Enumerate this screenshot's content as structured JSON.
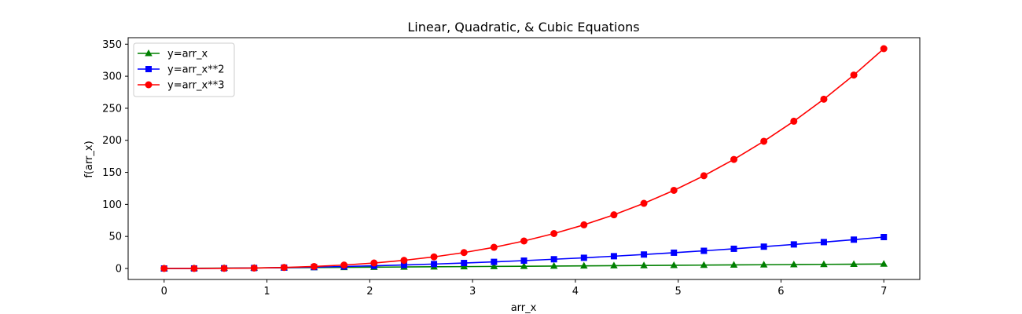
{
  "chart_data": {
    "type": "line",
    "title": "Linear, Quadratic, & Cubic Equations",
    "xlabel": "arr_x",
    "ylabel": "f(arr_x)",
    "xlim": [
      -0.35,
      7.35
    ],
    "ylim": [
      -17.15,
      360.15
    ],
    "xticks": [
      0,
      1,
      2,
      3,
      4,
      5,
      6,
      7
    ],
    "yticks": [
      0,
      50,
      100,
      150,
      200,
      250,
      300,
      350
    ],
    "grid": false,
    "legend_position": "top-left",
    "x": [
      0,
      0.2917,
      0.5833,
      0.875,
      1.1667,
      1.4583,
      1.75,
      2.0417,
      2.3333,
      2.625,
      2.9167,
      3.2083,
      3.5,
      3.7917,
      4.0833,
      4.375,
      4.6667,
      4.9583,
      5.25,
      5.5417,
      5.8333,
      6.125,
      6.4167,
      6.7083,
      7
    ],
    "series": [
      {
        "name": "y=arr_x",
        "color": "#008000",
        "marker": "triangle",
        "values": [
          0,
          0.29,
          0.58,
          0.88,
          1.17,
          1.46,
          1.75,
          2.04,
          2.33,
          2.63,
          2.92,
          3.21,
          3.5,
          3.79,
          4.08,
          4.38,
          4.67,
          4.96,
          5.25,
          5.54,
          5.83,
          6.13,
          6.42,
          6.71,
          7
        ]
      },
      {
        "name": "y=arr_x**2",
        "color": "#0000ff",
        "marker": "square",
        "values": [
          0,
          0.09,
          0.34,
          0.77,
          1.36,
          2.13,
          3.06,
          4.17,
          5.44,
          6.89,
          8.51,
          10.29,
          12.25,
          14.38,
          16.67,
          19.14,
          21.78,
          24.59,
          27.56,
          30.71,
          34.03,
          37.52,
          41.17,
          45.0,
          49
        ]
      },
      {
        "name": "y=arr_x**3",
        "color": "#ff0000",
        "marker": "circle",
        "values": [
          0,
          0.02,
          0.2,
          0.67,
          1.59,
          3.1,
          5.36,
          8.51,
          12.7,
          18.09,
          24.81,
          33.02,
          42.88,
          54.51,
          68.08,
          83.74,
          101.63,
          121.9,
          144.7,
          170.19,
          198.5,
          229.78,
          264.2,
          301.88,
          343
        ]
      }
    ]
  }
}
